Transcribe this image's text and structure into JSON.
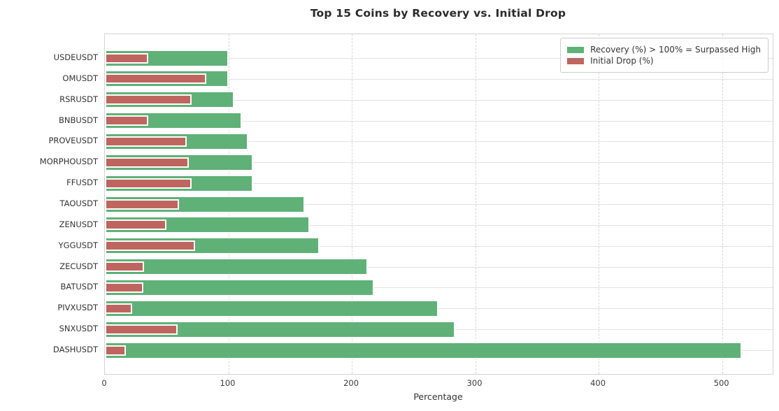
{
  "title": "Top 15 Coins by Recovery vs. Initial Drop",
  "chart_data": {
    "type": "bar",
    "orientation": "horizontal",
    "title": "Top 15 Coins by Recovery vs. Initial Drop",
    "xlabel": "Percentage",
    "ylabel": "",
    "grid": {
      "vertical": "dashed",
      "horizontal": "solid"
    },
    "legend_position": "upper right",
    "xlim": [
      0,
      541
    ],
    "xticks": [
      0,
      100,
      200,
      300,
      400,
      500
    ],
    "categories": [
      "USDEUSDT",
      "OMUSDT",
      "RSRUSDT",
      "BNBUSDT",
      "PROVEUSDT",
      "MORPHOUSDT",
      "FFUSDT",
      "TAOUSDT",
      "ZENUSDT",
      "YGGUSDT",
      "ZECUSDT",
      "BATUSDT",
      "PIVXUSDT",
      "SNXUSDT",
      "DASHUSDT"
    ],
    "series": [
      {
        "name": "Recovery (%) > 100% = Surpassed High",
        "color": "#5fb177",
        "values": [
          100,
          100,
          105,
          111,
          116,
          120,
          120,
          162,
          166,
          174,
          213,
          218,
          270,
          284,
          516
        ]
      },
      {
        "name": "Initial Drop (%)",
        "color": "#bf655f",
        "values": [
          35,
          82,
          70,
          35,
          66,
          68,
          70,
          60,
          50,
          73,
          32,
          31,
          22,
          59,
          17
        ]
      }
    ]
  }
}
